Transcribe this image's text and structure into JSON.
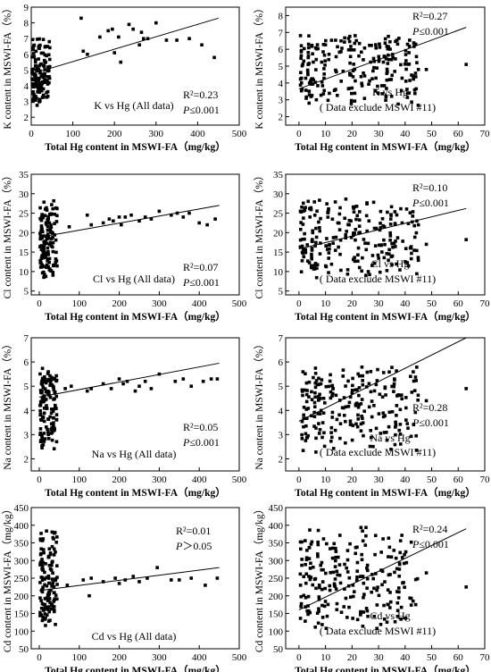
{
  "chart_data": [
    {
      "type": "scatter",
      "xlabel": "Total Hg content in MSWI-FA（mg/kg）",
      "ylabel": "K content in MSWI-FA（%）",
      "xlim": [
        0,
        500
      ],
      "ylim": [
        1.5,
        9
      ],
      "xticks": [
        0,
        100,
        200,
        300,
        400,
        500
      ],
      "yticks": [
        2,
        3,
        4,
        5,
        6,
        7,
        8,
        9
      ],
      "annotation": {
        "title": "K vs Hg (All data)",
        "r2": "R²=0.23",
        "p": "P≤0.001"
      },
      "trend": {
        "x": [
          0,
          450
        ],
        "y": [
          4.75,
          8.3
        ]
      },
      "points": {
        "cluster": {
          "xmin": 2,
          "xmax": 45,
          "ymin": 2.2,
          "ymax": 7.6,
          "n": 130
        },
        "outliers": [
          [
            120,
            8.3
          ],
          [
            125,
            6.2
          ],
          [
            135,
            6.0
          ],
          [
            165,
            7.1
          ],
          [
            185,
            7.5
          ],
          [
            195,
            7.6
          ],
          [
            200,
            6.1
          ],
          [
            210,
            7.1
          ],
          [
            215,
            5.5
          ],
          [
            235,
            7.9
          ],
          [
            245,
            7.6
          ],
          [
            260,
            6.6
          ],
          [
            265,
            7.4
          ],
          [
            270,
            7.0
          ],
          [
            280,
            7.0
          ],
          [
            300,
            8.0
          ],
          [
            325,
            6.9
          ],
          [
            350,
            6.9
          ],
          [
            380,
            7.0
          ],
          [
            410,
            6.6
          ],
          [
            440,
            5.8
          ]
        ]
      }
    },
    {
      "type": "scatter",
      "xlabel": "Total Hg content in MSWI-FA（mg/kg）",
      "ylabel": "K content in MSWI-FA（%）",
      "xlim": [
        -5,
        70
      ],
      "ylim": [
        1.5,
        8.5
      ],
      "xticks": [
        0,
        10,
        20,
        30,
        40,
        50,
        60,
        70
      ],
      "yticks": [
        2,
        3,
        4,
        5,
        6,
        7,
        8
      ],
      "annotation": {
        "title": "K vs Hg",
        "subtitle": "( Data exclude MSWI #11)",
        "r2": "R²=0.27",
        "p": "P≤0.001"
      },
      "trend": {
        "x": [
          0,
          63
        ],
        "y": [
          3.65,
          7.3
        ]
      },
      "points": {
        "cluster": {
          "xmin": 0.5,
          "xmax": 45,
          "ymin": 2.2,
          "ymax": 7.6,
          "n": 230
        },
        "outliers": [
          [
            63,
            5.1
          ],
          [
            45,
            4.8
          ],
          [
            44,
            6.3
          ],
          [
            48,
            4.8
          ]
        ]
      }
    },
    {
      "type": "scatter",
      "xlabel": "Total Hg content in MSWI-FA（mg/kg）",
      "ylabel": "Cl content in MSWI-FA（%）",
      "xlim": [
        -20,
        500
      ],
      "ylim": [
        4,
        35
      ],
      "xticks": [
        0,
        100,
        200,
        300,
        400,
        500
      ],
      "yticks": [
        5,
        10,
        15,
        20,
        25,
        30,
        35
      ],
      "annotation": {
        "title": "Cl vs Hg (All data)",
        "r2": "R²=0.07",
        "p": "P≤0.001"
      },
      "trend": {
        "x": [
          0,
          450
        ],
        "y": [
          18.8,
          27.0
        ]
      },
      "points": {
        "cluster": {
          "xmin": 2,
          "xmax": 45,
          "ymin": 6.0,
          "ymax": 31,
          "n": 130
        },
        "outliers": [
          [
            75,
            21.5
          ],
          [
            120,
            24.5
          ],
          [
            130,
            22
          ],
          [
            160,
            22.5
          ],
          [
            175,
            23.5
          ],
          [
            185,
            23
          ],
          [
            200,
            24
          ],
          [
            205,
            22
          ],
          [
            215,
            24
          ],
          [
            230,
            24.5
          ],
          [
            250,
            23
          ],
          [
            265,
            24
          ],
          [
            280,
            23.5
          ],
          [
            300,
            25.5
          ],
          [
            330,
            24.5
          ],
          [
            345,
            25
          ],
          [
            360,
            24
          ],
          [
            375,
            25
          ],
          [
            400,
            22.5
          ],
          [
            420,
            22
          ],
          [
            440,
            23.5
          ]
        ]
      }
    },
    {
      "type": "scatter",
      "xlabel": "Total Hg content in MSWI-FA（mg/kg）",
      "ylabel": "Cl content in MSWI-FA（%）",
      "xlim": [
        -5,
        70
      ],
      "ylim": [
        4,
        35
      ],
      "xticks": [
        0,
        10,
        20,
        30,
        40,
        50,
        60,
        70
      ],
      "yticks": [
        5,
        10,
        15,
        20,
        25,
        30,
        35
      ],
      "annotation": {
        "title": "Cl vs Hg",
        "subtitle": "( Data exclude MSWI #11)",
        "r2": "R²=0.10",
        "p": "P≤0.001"
      },
      "trend": {
        "x": [
          0,
          63
        ],
        "y": [
          15.8,
          26.2
        ]
      },
      "points": {
        "cluster": {
          "xmin": 0.5,
          "xmax": 45,
          "ymin": 6.5,
          "ymax": 31,
          "n": 230
        },
        "outliers": [
          [
            63,
            18.2
          ],
          [
            48,
            17
          ],
          [
            45,
            22
          ]
        ]
      }
    },
    {
      "type": "scatter",
      "xlabel": "Total Hg content in MSWI-FA（mg/kg）",
      "ylabel": "Na content in MSWI-FA（%）",
      "xlim": [
        -20,
        500
      ],
      "ylim": [
        1.5,
        7
      ],
      "xticks": [
        0,
        100,
        200,
        300,
        400,
        500
      ],
      "yticks": [
        2,
        3,
        4,
        5,
        6,
        7
      ],
      "annotation": {
        "title": "Na vs Hg (All data)",
        "r2": "R²=0.05",
        "p": "P≤0.001"
      },
      "trend": {
        "x": [
          0,
          450
        ],
        "y": [
          4.55,
          5.95
        ]
      },
      "points": {
        "cluster": {
          "xmin": 2,
          "xmax": 45,
          "ymin": 1.9,
          "ymax": 6.3,
          "n": 130
        },
        "outliers": [
          [
            65,
            4.9
          ],
          [
            80,
            5.0
          ],
          [
            120,
            4.8
          ],
          [
            130,
            4.9
          ],
          [
            160,
            5.1
          ],
          [
            180,
            4.9
          ],
          [
            200,
            5.3
          ],
          [
            210,
            5.1
          ],
          [
            220,
            5.2
          ],
          [
            240,
            4.8
          ],
          [
            250,
            5.0
          ],
          [
            265,
            5.2
          ],
          [
            280,
            4.9
          ],
          [
            300,
            5.5
          ],
          [
            340,
            5.2
          ],
          [
            360,
            5.3
          ],
          [
            380,
            5.0
          ],
          [
            410,
            5.2
          ],
          [
            430,
            5.3
          ],
          [
            445,
            5.3
          ]
        ]
      }
    },
    {
      "type": "scatter",
      "xlabel": "Total Hg content in MSWI-FA（mg/kg）",
      "ylabel": "Na content in MSWI-FA（%）",
      "xlim": [
        -5,
        70
      ],
      "ylim": [
        1.5,
        7
      ],
      "xticks": [
        0,
        10,
        20,
        30,
        40,
        50,
        60,
        70
      ],
      "yticks": [
        2,
        3,
        4,
        5,
        6,
        7
      ],
      "annotation": {
        "title": "Na vs Hg",
        "subtitle": "( Data exclude MSWI #11)",
        "r2": "R²=0.28",
        "p": "P≤0.001"
      },
      "trend": {
        "x": [
          0,
          63
        ],
        "y": [
          3.55,
          7.0
        ]
      },
      "points": {
        "cluster": {
          "xmin": 0.5,
          "xmax": 45,
          "ymin": 1.9,
          "ymax": 6.3,
          "n": 230
        },
        "outliers": [
          [
            63,
            4.9
          ],
          [
            48,
            4.4
          ]
        ]
      }
    },
    {
      "type": "scatter",
      "xlabel": "Total Hg content in MSWI-FA（mg/kg）",
      "ylabel": "Cd content in MSWI-FA（mg/kg）",
      "xlim": [
        -20,
        500
      ],
      "ylim": [
        50,
        450
      ],
      "xticks": [
        0,
        100,
        200,
        300,
        400,
        500
      ],
      "yticks": [
        50,
        100,
        150,
        200,
        250,
        300,
        350,
        400,
        450
      ],
      "annotation": {
        "title": "Cd vs Hg (All data)",
        "r2": "R²=0.01",
        "p": "P＞0.05"
      },
      "trend": {
        "x": [
          0,
          450
        ],
        "y": [
          215,
          280
        ]
      },
      "points": {
        "cluster": {
          "xmin": 2,
          "xmax": 45,
          "ymin": 65,
          "ymax": 430,
          "n": 130
        },
        "outliers": [
          [
            70,
            230
          ],
          [
            110,
            245
          ],
          [
            125,
            200
          ],
          [
            130,
            250
          ],
          [
            160,
            240
          ],
          [
            190,
            250
          ],
          [
            200,
            235
          ],
          [
            215,
            245
          ],
          [
            235,
            255
          ],
          [
            250,
            240
          ],
          [
            270,
            250
          ],
          [
            295,
            280
          ],
          [
            330,
            245
          ],
          [
            350,
            245
          ],
          [
            380,
            250
          ],
          [
            415,
            230
          ],
          [
            445,
            250
          ]
        ]
      }
    },
    {
      "type": "scatter",
      "xlabel": "Total Hg content in MSWI-FA（mg/kg）",
      "ylabel": "Cd content in MSWI-FA（mg/kg）",
      "xlim": [
        -5,
        70
      ],
      "ylim": [
        50,
        450
      ],
      "xticks": [
        0,
        10,
        20,
        30,
        40,
        50,
        60,
        70
      ],
      "yticks": [
        50,
        100,
        150,
        200,
        250,
        300,
        350,
        400,
        450
      ],
      "annotation": {
        "title": "Cd vs Hg",
        "subtitle": "( Data exclude MSWI #11)",
        "r2": "R²=0.24",
        "p": "P≤0.001"
      },
      "trend": {
        "x": [
          0,
          63
        ],
        "y": [
          160,
          390
        ]
      },
      "points": {
        "cluster": {
          "xmin": 0.5,
          "xmax": 45,
          "ymin": 65,
          "ymax": 430,
          "n": 230
        },
        "outliers": [
          [
            63,
            225
          ],
          [
            48,
            265
          ],
          [
            44,
            175
          ],
          [
            43,
            185
          ]
        ]
      }
    }
  ]
}
